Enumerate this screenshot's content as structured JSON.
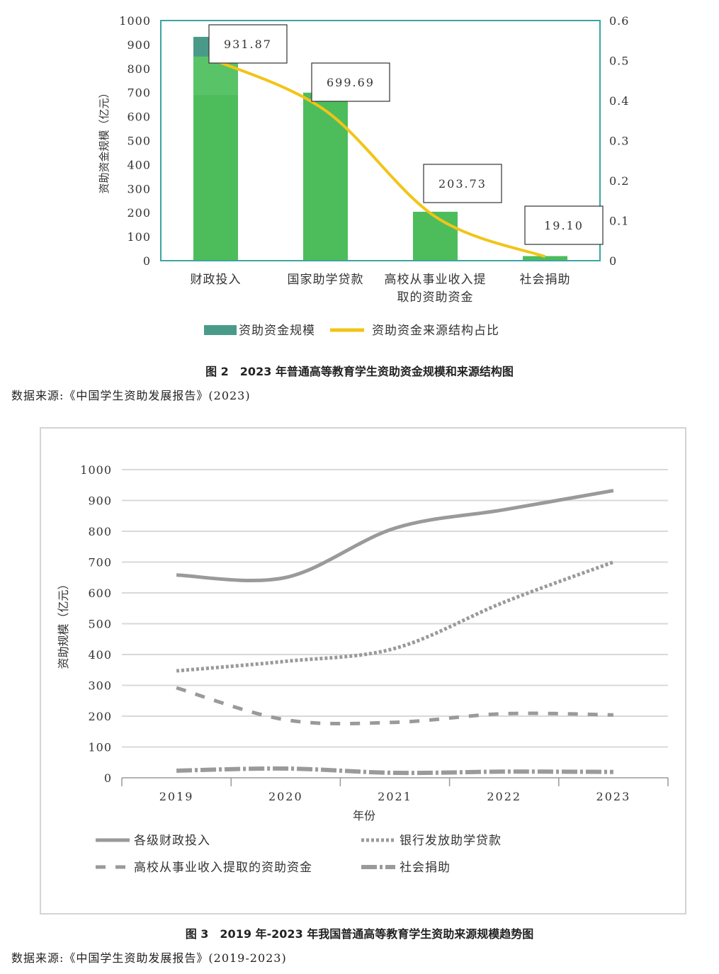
{
  "figure2": {
    "caption": "图 2　2023 年普通高等教育学生资助资金规模和来源结构图",
    "source": "数据来源:《中国学生资助发展报告》(2023)"
  },
  "figure3": {
    "caption": "图 3　2019 年-2023 年我国普通高等教育学生资助来源规模趋势图",
    "source": "数据来源:《中国学生资助发展报告》(2019-2023)"
  },
  "chart_data": [
    {
      "type": "bar",
      "categories": [
        "财政投入",
        "国家助学贷款",
        "高校从事业收入提取的资助资金",
        "社会捐助"
      ],
      "category_display": [
        [
          "财政投入"
        ],
        [
          "国家助学贷款"
        ],
        [
          "高校从事业收入提",
          "取的资助资金"
        ],
        [
          "社会捐助"
        ]
      ],
      "ylabel": "资助资金规模（亿元）",
      "ylim": [
        0,
        1000
      ],
      "yticks": [
        0,
        100,
        200,
        300,
        400,
        500,
        600,
        700,
        800,
        900,
        1000
      ],
      "y2lim": [
        0,
        0.6
      ],
      "y2ticks": [
        "0",
        "0.1",
        "0.2",
        "0.3",
        "0.4",
        "0.5",
        "0.6"
      ],
      "legend_position": "bottom",
      "series": [
        {
          "name": "资助资金规模",
          "type": "bar",
          "color": "#4dbd5c",
          "legend_color": "#4a9a8a",
          "values": [
            931.87,
            699.69,
            203.73,
            19.1
          ],
          "labels": [
            "931.87",
            "699.69",
            "203.73",
            "19.10"
          ]
        },
        {
          "name": "资助资金来源结构占比",
          "type": "line",
          "axis": "right",
          "color": "#f2c417",
          "values": [
            0.5,
            0.375,
            0.11,
            0.01
          ]
        }
      ]
    },
    {
      "type": "line",
      "categories": [
        "2019",
        "2020",
        "2021",
        "2022",
        "2023"
      ],
      "xlabel": "年份",
      "ylabel": "资助规模（亿元）",
      "ylim": [
        0,
        1000
      ],
      "yticks": [
        0,
        100,
        200,
        300,
        400,
        500,
        600,
        700,
        800,
        900,
        1000
      ],
      "grid": true,
      "legend_position": "bottom",
      "series": [
        {
          "name": "各级财政投入",
          "style": "solid",
          "color": "#9a9a9a",
          "values": [
            658,
            650,
            810,
            870,
            932
          ]
        },
        {
          "name": "银行发放助学贷款",
          "style": "dotted",
          "color": "#9a9a9a",
          "values": [
            347,
            378,
            420,
            570,
            700
          ]
        },
        {
          "name": "高校从事业收入提取的资助资金",
          "style": "dashed",
          "color": "#9a9a9a",
          "values": [
            292,
            188,
            180,
            208,
            204
          ]
        },
        {
          "name": "社会捐助",
          "style": "dashdot",
          "color": "#9a9a9a",
          "values": [
            23,
            30,
            16,
            20,
            19
          ]
        }
      ]
    }
  ]
}
